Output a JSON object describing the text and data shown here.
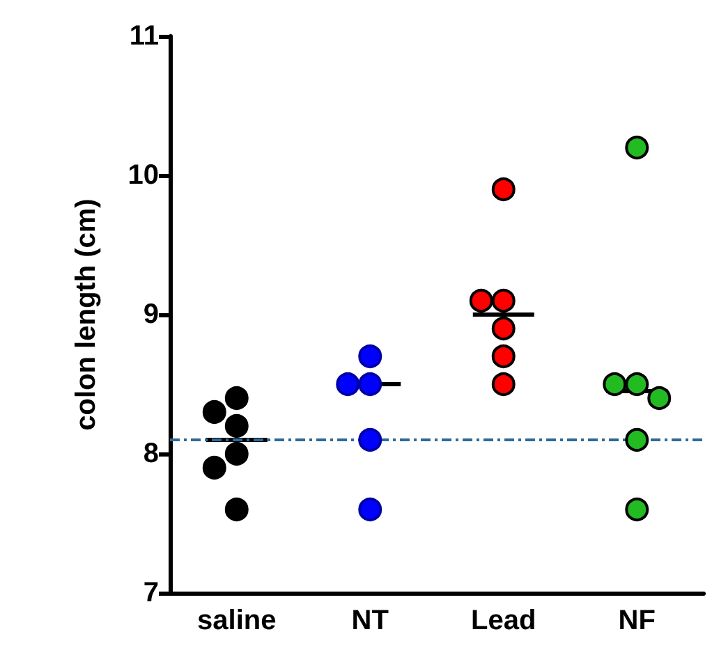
{
  "chart_data": {
    "type": "scatter",
    "ylabel": "colon length (cm)",
    "categories": [
      "saline",
      "NT",
      "Lead",
      "NF"
    ],
    "ylim": [
      7,
      11
    ],
    "yticks": [
      7,
      8,
      9,
      10,
      11
    ],
    "grid": false,
    "marker": "circle",
    "series": [
      {
        "x": [
          "saline",
          "saline",
          "saline",
          "saline",
          "saline",
          "saline",
          "NT",
          "NT",
          "NT",
          "NT",
          "NT",
          "Lead",
          "Lead",
          "Lead",
          "Lead",
          "Lead",
          "Lead",
          "NF",
          "NF",
          "NF",
          "NF",
          "NF",
          "NF"
        ],
        "values": [
          8.4,
          8.3,
          8.2,
          8.0,
          7.9,
          7.6,
          8.7,
          8.5,
          8.5,
          8.1,
          7.6,
          9.9,
          9.1,
          9.1,
          8.9,
          8.7,
          8.5,
          10.2,
          8.5,
          8.5,
          8.4,
          8.1,
          7.6
        ],
        "colors": [
          "#000000",
          "#000000",
          "#000000",
          "#000000",
          "#000000",
          "#000000",
          "#0000ff",
          "#0000ff",
          "#0000ff",
          "#0000ff",
          "#0000ff",
          "#ff0000",
          "#ff0000",
          "#ff0000",
          "#ff0000",
          "#ff0000",
          "#ff0000",
          "#22bb22",
          "#22bb22",
          "#22bb22",
          "#22bb22",
          "#22bb22",
          "#22bb22"
        ]
      },
      {
        "type": "box",
        "color": "#000000",
        "boxes": [
          {
            "low": 8.1,
            "q1": 8.1,
            "median": 8.1,
            "q3": 8.1,
            "high": 8.1
          },
          {
            "low": 8.5,
            "q1": 8.5,
            "median": 8.5,
            "q3": 8.5,
            "high": 8.5
          },
          {
            "low": 9.0,
            "q1": 9.0,
            "median": 9.0,
            "q3": 9.0,
            "high": 9.0
          },
          {
            "low": 8.45,
            "q1": 8.45,
            "median": 8.45,
            "q3": 8.45,
            "high": 8.45
          }
        ]
      }
    ],
    "ref_lines": [
      {
        "axis": "y",
        "value": 8.1,
        "color": "#2e6a99",
        "line_style": "dashed"
      }
    ]
  }
}
